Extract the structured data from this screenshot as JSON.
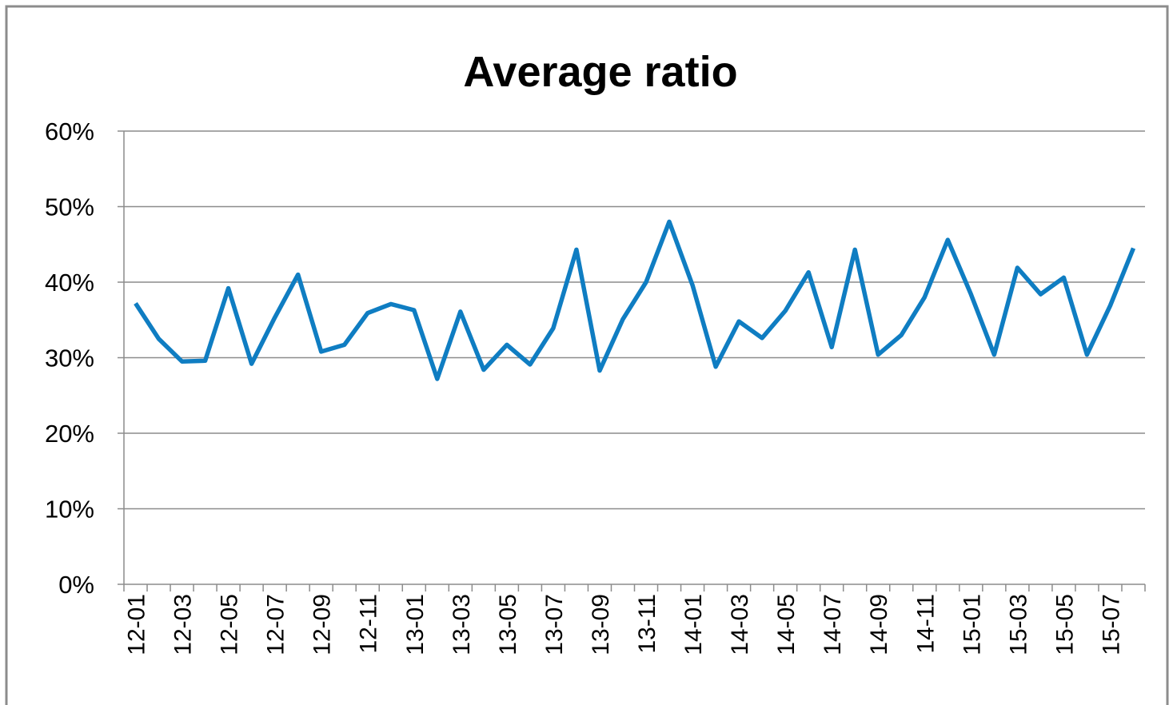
{
  "chart_data": {
    "type": "line",
    "title": "Average ratio",
    "categories": [
      "12-01",
      null,
      "12-03",
      null,
      "12-05",
      null,
      "12-07",
      null,
      "12-09",
      null,
      "12-11",
      null,
      "13-01",
      null,
      "13-03",
      null,
      "13-05",
      null,
      "13-07",
      null,
      "13-09",
      null,
      "13-11",
      null,
      "14-01",
      null,
      "14-03",
      null,
      "14-05",
      null,
      "14-07",
      null,
      "14-09",
      null,
      "14-11",
      null,
      "15-01",
      null,
      "15-03",
      null,
      "15-05",
      null,
      "15-07",
      null
    ],
    "values": [
      37.2,
      32.5,
      29.5,
      29.6,
      39.2,
      29.2,
      35.3,
      41.0,
      30.8,
      31.7,
      35.9,
      37.1,
      36.3,
      27.2,
      36.1,
      28.4,
      31.7,
      29.1,
      33.9,
      44.3,
      28.3,
      35.1,
      40.0,
      48.0,
      39.6,
      28.8,
      34.8,
      32.6,
      36.2,
      41.3,
      31.4,
      44.3,
      30.4,
      33.0,
      38.0,
      45.6,
      38.4,
      30.4,
      41.9,
      38.4,
      40.6,
      30.4,
      36.9,
      44.5
    ],
    "color": "#0f7dc2",
    "ylim": [
      0,
      60
    ],
    "yticks": [
      {
        "value": 0,
        "label": "0%"
      },
      {
        "value": 10,
        "label": "10%"
      },
      {
        "value": 20,
        "label": "20%"
      },
      {
        "value": 30,
        "label": "30%"
      },
      {
        "value": 40,
        "label": "40%"
      },
      {
        "value": 50,
        "label": "50%"
      },
      {
        "value": 60,
        "label": "60%"
      }
    ],
    "grid": true
  }
}
